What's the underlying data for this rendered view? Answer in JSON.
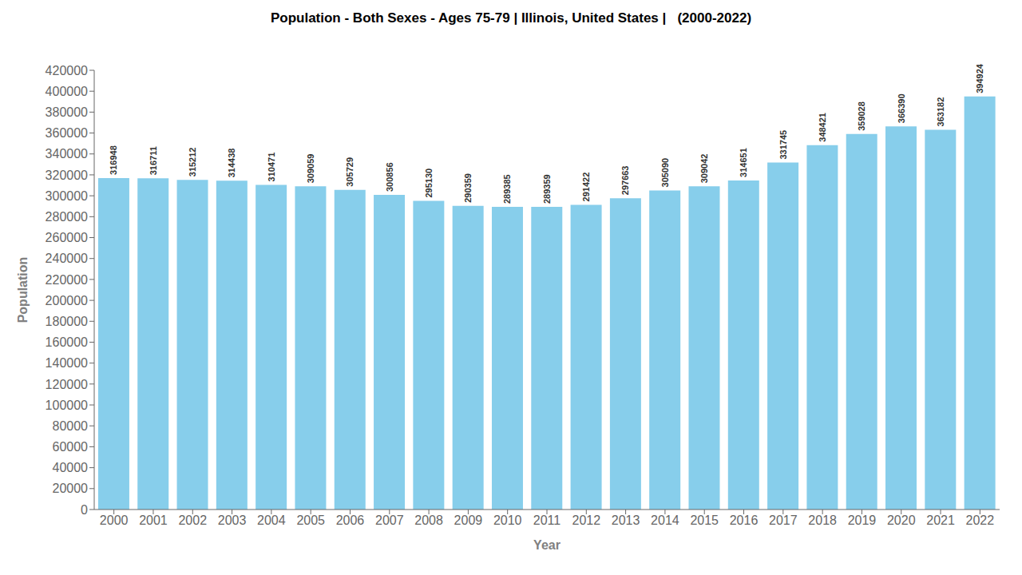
{
  "chart_data": {
    "type": "bar",
    "title": "Population - Both Sexes - Ages 75-79 | Illinois, United States |   (2000-2022)",
    "x_label": "Year",
    "y_label": "Population",
    "categories": [
      "2000",
      "2001",
      "2002",
      "2003",
      "2004",
      "2005",
      "2006",
      "2007",
      "2008",
      "2009",
      "2010",
      "2011",
      "2012",
      "2013",
      "2014",
      "2015",
      "2016",
      "2017",
      "2018",
      "2019",
      "2020",
      "2021",
      "2022"
    ],
    "values": [
      316948,
      316711,
      315212,
      314438,
      310471,
      309059,
      305729,
      300856,
      295130,
      290359,
      289385,
      289359,
      291422,
      297663,
      305090,
      309042,
      314651,
      331745,
      348421,
      359028,
      366390,
      363182,
      394924
    ],
    "color": "#87CEEB",
    "ylim": [
      0,
      420000
    ],
    "yticks": [
      0,
      20000,
      40000,
      60000,
      80000,
      100000,
      120000,
      140000,
      160000,
      180000,
      200000,
      220000,
      240000,
      260000,
      280000,
      300000,
      320000,
      340000,
      360000,
      380000,
      400000,
      420000
    ],
    "grid": false,
    "data_labels": true
  }
}
